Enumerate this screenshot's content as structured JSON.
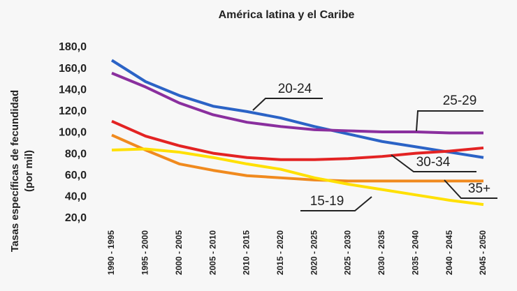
{
  "chart_data": {
    "type": "line",
    "title": "América latina y el Caribe",
    "ylabel": [
      "Tasas específicas de fecundidad",
      "(por mil)"
    ],
    "categories": [
      "1990 - 1995",
      "1995 - 2000",
      "2000 - 2005",
      "2005 - 2010",
      "2010 - 2015",
      "2015 - 2020",
      "2020 - 2025",
      "2025 - 2030",
      "2030 - 2035",
      "2035 - 2040",
      "2040 - 2045",
      "2045 - 2050"
    ],
    "ylim": [
      20,
      180
    ],
    "yticks": [
      {
        "value": 20,
        "label": "20,0"
      },
      {
        "value": 40,
        "label": "40,0"
      },
      {
        "value": 60,
        "label": "60,0"
      },
      {
        "value": 80,
        "label": "80,0"
      },
      {
        "value": 100,
        "label": "100,0"
      },
      {
        "value": 120,
        "label": "120,0"
      },
      {
        "value": 140,
        "label": "140,0"
      },
      {
        "value": 160,
        "label": "160,0"
      },
      {
        "value": 180,
        "label": "180,0"
      }
    ],
    "grid": false,
    "series": [
      {
        "name": "20-24",
        "color": "#2b63c6",
        "values": [
          168,
          148,
          135,
          125,
          120,
          114,
          106,
          99,
          92,
          87,
          82,
          77
        ]
      },
      {
        "name": "25-29",
        "color": "#8a2f9e",
        "values": [
          156,
          143,
          128,
          117,
          110,
          106,
          103,
          102,
          101,
          101,
          100,
          100
        ]
      },
      {
        "name": "30-34",
        "color": "#e32323",
        "values": [
          111,
          97,
          88,
          81,
          77,
          75,
          75,
          76,
          78,
          81,
          83,
          86
        ]
      },
      {
        "name": "35+",
        "color": "#f08a1e",
        "values": [
          98,
          84,
          71,
          65,
          60,
          58,
          56,
          55,
          55,
          55,
          55,
          55
        ]
      },
      {
        "name": "15-19",
        "color": "#ffe000",
        "values": [
          84,
          85,
          82,
          77,
          71,
          66,
          58,
          52,
          47,
          42,
          37,
          33
        ]
      }
    ]
  }
}
